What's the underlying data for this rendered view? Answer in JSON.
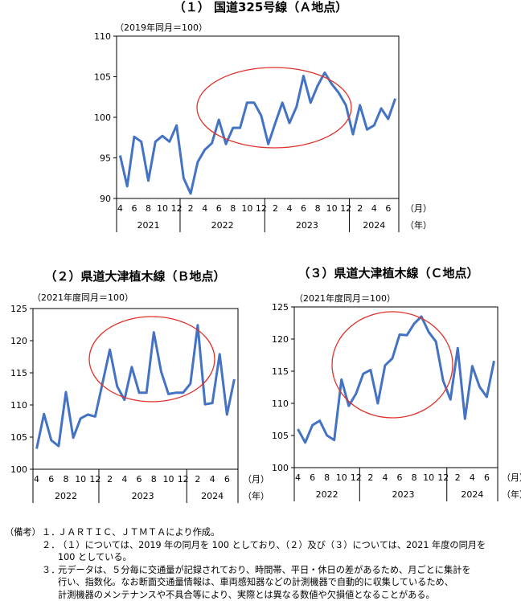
{
  "chart_data": [
    {
      "type": "line",
      "title": "（１） 国道325号線（Ａ地点）",
      "index_note": "（2019年同月＝100）",
      "ylim": [
        90,
        110
      ],
      "yticks": [
        "90",
        "95",
        "100",
        "105",
        "110"
      ],
      "month_ticks": [
        "4",
        "6",
        "8",
        "10",
        "12",
        "2",
        "4",
        "6",
        "8",
        "10",
        "12",
        "2",
        "4",
        "6",
        "8",
        "10",
        "12",
        "2",
        "4",
        "6"
      ],
      "month_unit": "（月）",
      "year_unit": "（年）",
      "year_labels": [
        "2021",
        "2022",
        "2023",
        "2024"
      ],
      "series": [
        {
          "name": "A",
          "values": [
            95.3,
            91.5,
            97.6,
            97.0,
            92.2,
            97.0,
            97.7,
            97.0,
            99.0,
            92.5,
            90.6,
            94.5,
            96.0,
            96.8,
            99.7,
            96.7,
            98.7,
            98.7,
            101.8,
            101.8,
            100.2,
            96.7,
            99.3,
            101.8,
            99.3,
            101.3,
            105.1,
            101.8,
            103.9,
            105.5,
            104.1,
            103.0,
            101.5,
            97.9,
            101.5,
            98.5,
            99.0,
            101.1,
            99.8,
            102.3
          ]
        }
      ],
      "highlight": "2023"
    },
    {
      "type": "line",
      "title": "（２）県道大津植木線（Ｂ地点）",
      "index_note": "（2021年度同月＝100）",
      "ylim": [
        100,
        125
      ],
      "yticks": [
        "100",
        "105",
        "110",
        "115",
        "120",
        "125"
      ],
      "month_ticks": [
        "4",
        "6",
        "8",
        "10",
        "12",
        "2",
        "4",
        "6",
        "8",
        "10",
        "12",
        "2",
        "4",
        "6"
      ],
      "month_unit": "（月）",
      "year_unit": "（年）",
      "year_labels": [
        "2022",
        "2023",
        "2024"
      ],
      "series": [
        {
          "name": "B",
          "values": [
            103.2,
            108.6,
            104.5,
            103.6,
            112.0,
            104.9,
            107.9,
            108.5,
            108.2,
            113.4,
            118.6,
            112.9,
            110.8,
            115.9,
            111.9,
            111.9,
            121.3,
            115.2,
            111.7,
            111.9,
            111.9,
            113.3,
            122.4,
            110.1,
            110.3,
            117.9,
            108.5,
            114.0
          ]
        }
      ],
      "highlight": "2023"
    },
    {
      "type": "line",
      "title": "（３）県道大津植木線（Ｃ地点）",
      "index_note": "（2021年度同月＝100）",
      "ylim": [
        100,
        125
      ],
      "yticks": [
        "100",
        "105",
        "110",
        "115",
        "120",
        "125"
      ],
      "month_ticks": [
        "4",
        "6",
        "8",
        "10",
        "12",
        "2",
        "4",
        "6",
        "8",
        "10",
        "12",
        "2",
        "4",
        "6"
      ],
      "month_unit": "（月）",
      "year_unit": "（年）",
      "year_labels": [
        "2022",
        "2023",
        "2024"
      ],
      "series": [
        {
          "name": "C",
          "values": [
            106.0,
            103.9,
            106.6,
            107.3,
            105.0,
            104.3,
            113.7,
            109.6,
            111.5,
            114.6,
            115.2,
            110.0,
            115.9,
            117.0,
            120.7,
            120.6,
            122.4,
            123.5,
            121.1,
            119.6,
            113.5,
            110.6,
            118.6,
            107.6,
            115.8,
            112.6,
            111.0,
            116.6
          ]
        }
      ],
      "highlight": "2023"
    }
  ],
  "colors": {
    "line": "#4472c4",
    "circle": "#e0312b",
    "axis": "#000000"
  },
  "notes": {
    "head": "（備考）",
    "items": [
      {
        "num": "１．",
        "lines": [
          "ＪＡＲＴＩＣ、ＪＴＭＴＡにより作成。"
        ]
      },
      {
        "num": "２．",
        "lines": [
          "（１）については、2019 年の同月を 100 としており、（２）及び（３）については、2021 年度の同月を",
          "100 としている。"
        ]
      },
      {
        "num": "３．",
        "lines": [
          "元データは、５分毎に交通量が記録されており、時間帯、平日・休日の差があるため、月ごとに集計を",
          "行い、指数化。なお断面交通量情報は、車両感知器などの計測機器で自動的に収集しているため、",
          "計測機器のメンテナンスや不具合等により、実際とは異なる数値や欠損値となることがある。"
        ]
      }
    ]
  }
}
